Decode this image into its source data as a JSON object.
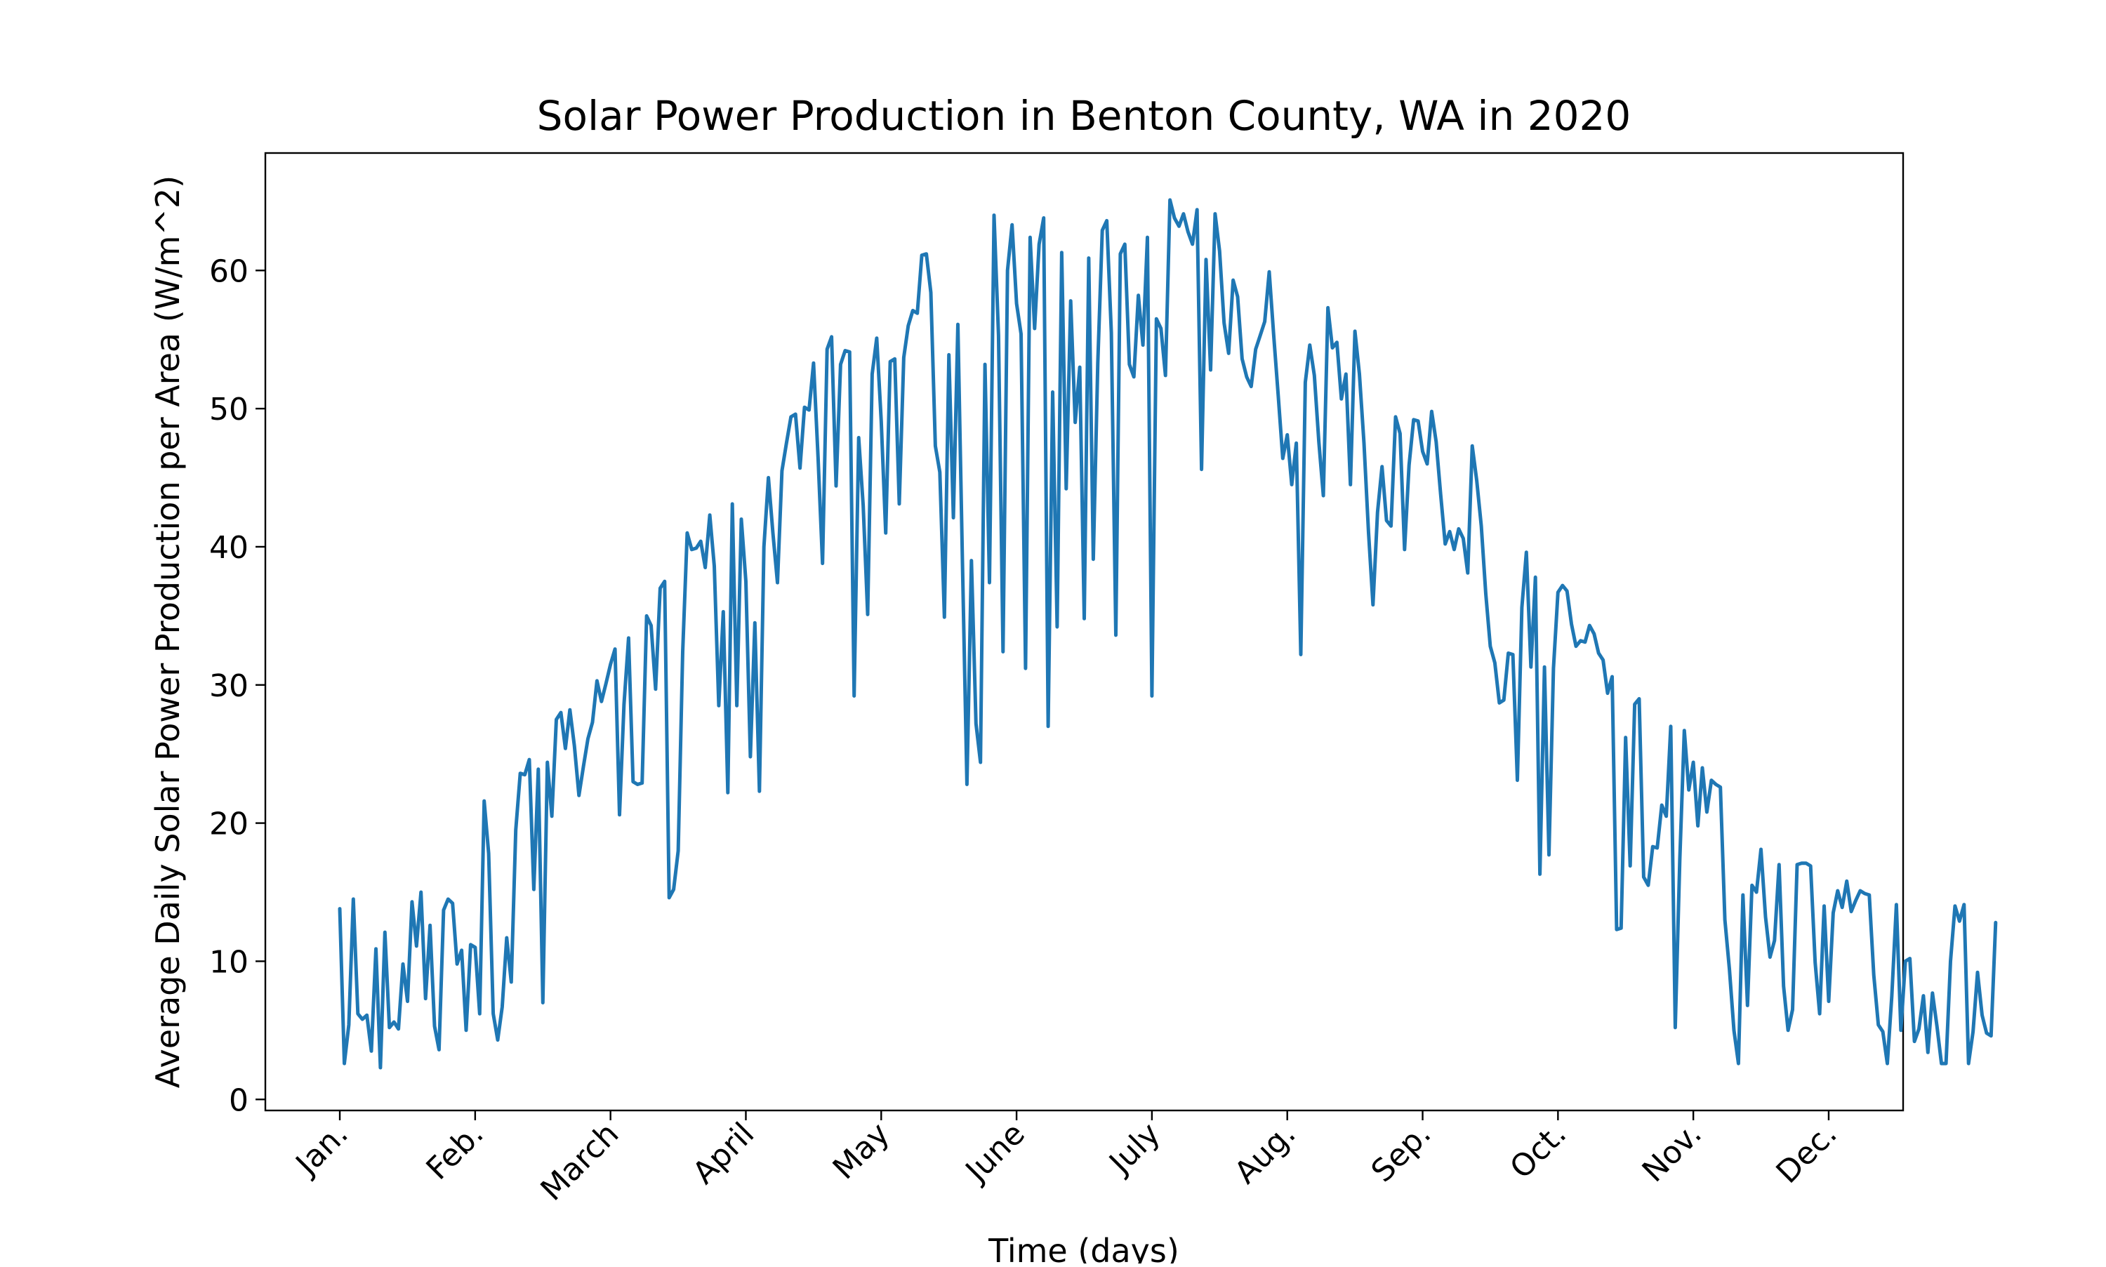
{
  "chart_data": {
    "type": "line",
    "title": "Solar Power Production in Benton County, WA in 2020",
    "xlabel": "Time (days)",
    "ylabel": "Average Daily Solar Power Production per Area (W/m^2)",
    "x_tick_labels": [
      "Jan.",
      "Feb.",
      "March",
      "April",
      "May",
      "June",
      "July",
      "Aug.",
      "Sep.",
      "Oct.",
      "Nov.",
      "Dec."
    ],
    "y_ticks": [
      0,
      10,
      20,
      30,
      40,
      50,
      60
    ],
    "xlim": [
      -16.5,
      346.5
    ],
    "ylim": [
      -0.8,
      68.5
    ],
    "grid": false,
    "line_color": "#1f77b4",
    "series": [
      {
        "values": [
          13.8,
          2.6,
          5.4,
          14.5,
          6.2,
          5.8,
          6.1,
          3.5,
          10.9,
          2.3,
          12.1,
          5.2,
          5.6,
          5.1,
          9.8,
          7.1,
          14.3,
          11.1,
          15.0,
          7.3,
          12.6,
          5.3,
          3.6,
          13.7,
          14.5,
          14.2,
          9.8,
          10.8,
          5.0,
          11.2,
          11.0,
          6.2,
          21.6,
          17.8,
          6.2,
          4.3,
          6.7,
          11.7,
          8.5,
          19.5,
          23.6,
          23.5,
          24.6,
          15.2,
          23.9,
          7.0,
          24.4,
          20.5,
          27.5,
          28.0,
          25.4,
          28.2,
          25.6,
          22.0,
          24.1,
          26.1,
          27.3,
          30.3,
          28.8,
          30.1,
          31.5,
          32.6,
          20.6,
          28.6,
          33.4,
          23.0,
          22.8,
          22.9,
          35.0,
          34.3,
          29.7,
          37.0,
          37.5,
          14.6,
          15.2,
          18.0,
          32.4,
          41.0,
          39.8,
          39.9,
          40.4,
          38.5,
          42.3,
          38.6,
          28.5,
          35.3,
          22.2,
          43.1,
          28.5,
          42.0,
          37.5,
          24.8,
          34.5,
          22.3,
          40.0,
          45.0,
          41.0,
          37.4,
          45.5,
          47.5,
          49.4,
          49.6,
          45.7,
          50.1,
          49.9,
          53.3,
          46.5,
          38.8,
          54.3,
          55.2,
          44.4,
          53.2,
          54.2,
          54.1,
          29.2,
          47.9,
          43.0,
          35.1,
          52.5,
          55.1,
          49.1,
          41.0,
          53.4,
          53.6,
          43.1,
          53.7,
          56.0,
          57.1,
          56.9,
          61.1,
          61.2,
          58.4,
          47.3,
          45.4,
          34.9,
          53.9,
          42.1,
          56.1,
          38.9,
          22.8,
          39.0,
          27.2,
          24.4,
          53.2,
          37.4,
          64.0,
          55.3,
          32.4,
          60.0,
          63.3,
          57.6,
          55.4,
          31.2,
          62.4,
          55.8,
          61.9,
          63.8,
          27.0,
          51.2,
          34.2,
          61.3,
          44.2,
          57.8,
          49.0,
          53.0,
          34.8,
          60.9,
          39.1,
          53.3,
          62.9,
          63.6,
          55.5,
          33.6,
          61.2,
          61.9,
          53.2,
          52.3,
          58.2,
          54.6,
          62.4,
          29.2,
          56.5,
          55.8,
          52.4,
          65.1,
          63.8,
          63.2,
          64.1,
          62.8,
          61.9,
          64.4,
          45.6,
          60.8,
          52.8,
          64.1,
          61.4,
          56.2,
          54.0,
          59.3,
          58.1,
          53.6,
          52.3,
          51.6,
          54.3,
          55.3,
          56.3,
          59.9,
          55.3,
          50.9,
          46.4,
          48.1,
          44.5,
          47.5,
          32.2,
          51.9,
          54.6,
          52.4,
          47.6,
          43.7,
          57.3,
          54.4,
          54.8,
          50.7,
          52.5,
          44.5,
          55.6,
          52.5,
          47.5,
          41.1,
          35.8,
          42.5,
          45.8,
          41.9,
          41.5,
          49.4,
          48.2,
          39.8,
          45.9,
          49.2,
          49.1,
          46.9,
          46.0,
          49.8,
          47.6,
          43.8,
          40.2,
          41.1,
          39.8,
          41.3,
          40.6,
          38.1,
          47.3,
          44.8,
          41.5,
          36.6,
          32.8,
          31.6,
          28.7,
          28.9,
          32.3,
          32.2,
          23.1,
          35.6,
          39.6,
          31.3,
          37.8,
          16.3,
          31.3,
          17.7,
          31.2,
          36.7,
          37.2,
          36.8,
          34.4,
          32.8,
          33.2,
          33.1,
          34.3,
          33.7,
          32.3,
          31.8,
          29.4,
          30.6,
          12.3,
          12.4,
          26.2,
          16.9,
          28.6,
          29.0,
          16.1,
          15.5,
          18.3,
          18.2,
          21.3,
          20.5,
          27.0,
          5.2,
          17.4,
          26.7,
          22.4,
          24.4,
          19.8,
          24.0,
          20.8,
          23.1,
          22.8,
          22.6,
          13.0,
          9.4,
          5.0,
          2.6,
          14.8,
          6.8,
          15.5,
          15.0,
          18.1,
          13.2,
          10.3,
          11.5,
          17.0,
          8.2,
          5.0,
          6.5,
          17.0,
          17.1,
          17.1,
          16.9,
          9.9,
          6.2,
          14.0,
          7.1,
          13.5,
          15.1,
          13.9,
          15.8,
          13.6,
          14.4,
          15.1,
          14.9,
          14.8,
          9.0,
          5.4,
          4.9,
          2.6,
          7.5,
          14.1,
          5.0,
          10.0,
          10.2,
          4.2,
          5.1,
          7.5,
          3.4,
          7.7,
          5.3,
          2.6,
          2.6,
          10.0,
          14.0,
          12.9,
          14.1,
          2.6,
          4.9,
          9.2,
          6.1,
          4.8,
          4.6,
          12.8
        ]
      }
    ]
  }
}
